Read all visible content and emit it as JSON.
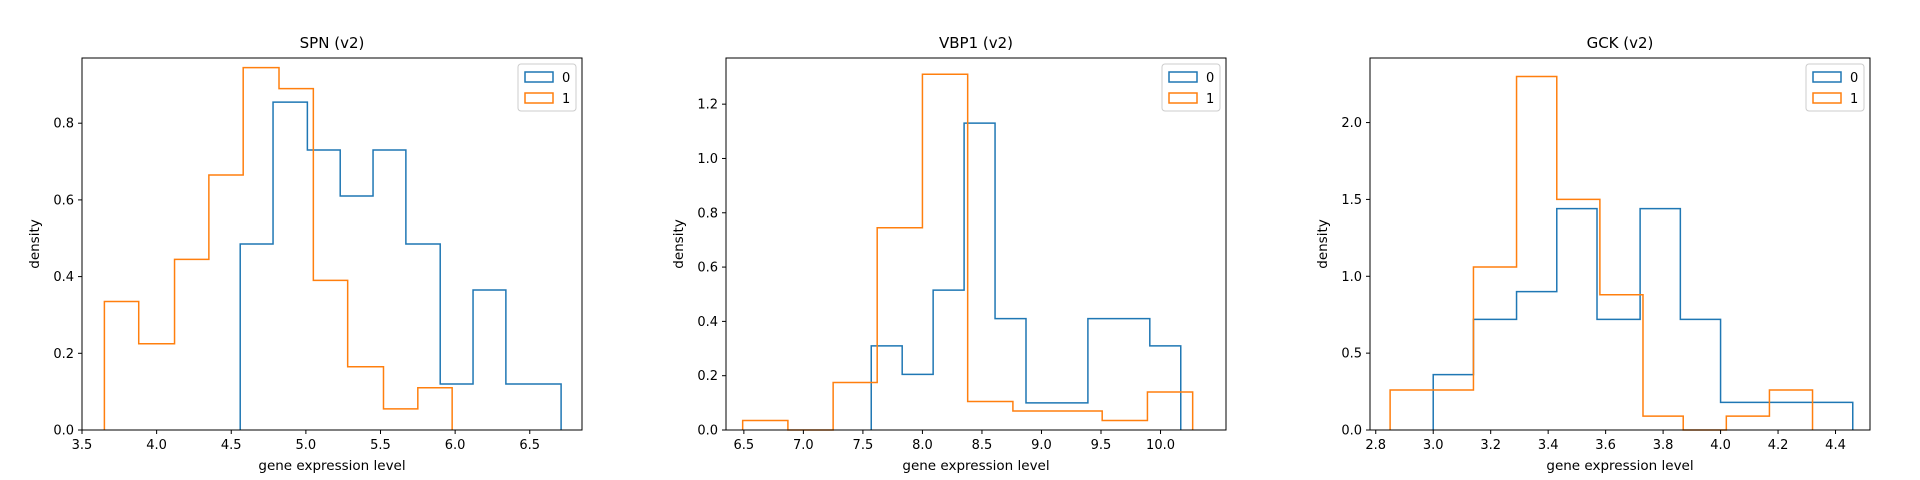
{
  "colors": {
    "series0": "#1f77b4",
    "series1": "#ff7f0e"
  },
  "chart_data": [
    {
      "type": "histogram-step",
      "title": "SPN  (v2)",
      "xlabel": "gene expression level",
      "ylabel": "density",
      "xlim": [
        3.5,
        6.85
      ],
      "ylim": [
        0,
        0.97
      ],
      "xticks": [
        3.5,
        4.0,
        4.5,
        5.0,
        5.5,
        6.0,
        6.5
      ],
      "xtick_labels": [
        "3.5",
        "4.0",
        "4.5",
        "5.0",
        "5.5",
        "6.0",
        "6.5"
      ],
      "yticks": [
        0.0,
        0.2,
        0.4,
        0.6,
        0.8
      ],
      "ytick_labels": [
        "0.0",
        "0.2",
        "0.4",
        "0.6",
        "0.8"
      ],
      "legend_position": "top-right",
      "series": [
        {
          "name": "0",
          "color_key": "series0",
          "edges": [
            4.56,
            4.78,
            5.01,
            5.23,
            5.45,
            5.67,
            5.9,
            6.12,
            6.34,
            6.71
          ],
          "values": [
            0.485,
            0.855,
            0.73,
            0.61,
            0.73,
            0.485,
            0.12,
            0.365,
            0.12
          ]
        },
        {
          "name": "1",
          "color_key": "series1",
          "edges": [
            3.65,
            3.88,
            4.12,
            4.35,
            4.58,
            4.82,
            5.05,
            5.28,
            5.52,
            5.75,
            5.98
          ],
          "values": [
            0.335,
            0.225,
            0.445,
            0.665,
            0.945,
            0.89,
            0.39,
            0.165,
            0.055,
            0.11
          ]
        }
      ]
    },
    {
      "type": "histogram-step",
      "title": "VBP1  (v2)",
      "xlabel": "gene expression level",
      "ylabel": "density",
      "xlim": [
        6.35,
        10.55
      ],
      "ylim": [
        0,
        1.37
      ],
      "xticks": [
        6.5,
        7.0,
        7.5,
        8.0,
        8.5,
        9.0,
        9.5,
        10.0
      ],
      "xtick_labels": [
        "6.5",
        "7.0",
        "7.5",
        "8.0",
        "8.5",
        "9.0",
        "9.5",
        "10.0"
      ],
      "yticks": [
        0.0,
        0.2,
        0.4,
        0.6,
        0.8,
        1.0,
        1.2
      ],
      "ytick_labels": [
        "0.0",
        "0.2",
        "0.4",
        "0.6",
        "0.8",
        "1.0",
        "1.2"
      ],
      "legend_position": "top-right",
      "series": [
        {
          "name": "0",
          "color_key": "series0",
          "edges": [
            7.57,
            7.83,
            8.09,
            8.35,
            8.61,
            8.87,
            9.13,
            9.39,
            9.65,
            9.91,
            10.17
          ],
          "values": [
            0.31,
            0.205,
            0.515,
            1.13,
            0.41,
            0.1,
            0.1,
            0.41,
            0.41,
            0.31
          ]
        },
        {
          "name": "1",
          "color_key": "series1",
          "edges": [
            6.49,
            6.87,
            7.25,
            7.62,
            8.0,
            8.38,
            8.76,
            9.13,
            9.51,
            9.89,
            10.27
          ],
          "values": [
            0.035,
            0.0,
            0.175,
            0.745,
            1.31,
            0.105,
            0.07,
            0.07,
            0.035,
            0.14
          ]
        }
      ]
    },
    {
      "type": "histogram-step",
      "title": "GCK  (v2)",
      "xlabel": "gene expression level",
      "ylabel": "density",
      "xlim": [
        2.78,
        4.52
      ],
      "ylim": [
        0,
        2.42
      ],
      "xticks": [
        2.8,
        3.0,
        3.2,
        3.4,
        3.6,
        3.8,
        4.0,
        4.2,
        4.4
      ],
      "xtick_labels": [
        "2.8",
        "3.0",
        "3.2",
        "3.4",
        "3.6",
        "3.8",
        "4.0",
        "4.2",
        "4.4"
      ],
      "yticks": [
        0.0,
        0.5,
        1.0,
        1.5,
        2.0
      ],
      "ytick_labels": [
        "0.0",
        "0.5",
        "1.0",
        "1.5",
        "2.0"
      ],
      "legend_position": "top-right",
      "series": [
        {
          "name": "0",
          "color_key": "series0",
          "edges": [
            3.0,
            3.14,
            3.29,
            3.43,
            3.57,
            3.72,
            3.86,
            4.0,
            4.14,
            4.29,
            4.46
          ],
          "values": [
            0.36,
            0.72,
            0.9,
            1.44,
            0.72,
            1.44,
            0.72,
            0.18,
            0.18,
            0.18
          ]
        },
        {
          "name": "1",
          "color_key": "series1",
          "edges": [
            2.85,
            3.0,
            3.14,
            3.29,
            3.43,
            3.58,
            3.73,
            3.87,
            4.02,
            4.17,
            4.32
          ],
          "values": [
            0.26,
            0.26,
            1.06,
            2.3,
            1.5,
            0.88,
            0.09,
            0.0,
            0.09,
            0.26
          ]
        }
      ]
    }
  ]
}
